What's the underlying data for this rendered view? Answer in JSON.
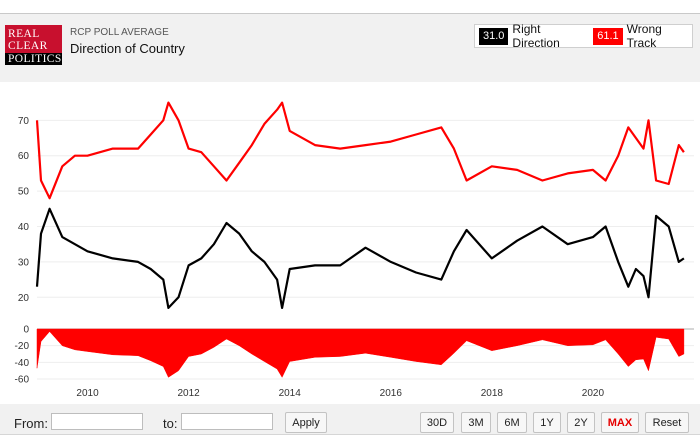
{
  "header": {
    "logo_lines": [
      "REAL",
      "CLEAR",
      "POLITICS"
    ],
    "subtitle": "RCP POLL AVERAGE",
    "title": "Direction of Country"
  },
  "legend": {
    "right_value": "31.0",
    "right_label": "Right Direction",
    "wrong_value": "61.1",
    "wrong_label": "Wrong Track"
  },
  "controls": {
    "from_label": "From:",
    "from_value": "",
    "to_label": "to:",
    "to_value": "",
    "apply_label": "Apply",
    "ranges": [
      "30D",
      "3M",
      "6M",
      "1Y",
      "2Y",
      "MAX"
    ],
    "active_range": "MAX",
    "reset_label": "Reset"
  },
  "colors": {
    "right": "#000000",
    "wrong": "#ff0000",
    "spread": "#ff0000"
  },
  "chart_data": {
    "type": "line",
    "x": [
      2009.0,
      2009.08,
      2009.25,
      2009.5,
      2009.75,
      2010.0,
      2010.5,
      2011.0,
      2011.25,
      2011.5,
      2011.6,
      2011.8,
      2012.0,
      2012.25,
      2012.5,
      2012.75,
      2013.0,
      2013.25,
      2013.5,
      2013.75,
      2013.85,
      2014.0,
      2014.5,
      2015.0,
      2015.5,
      2016.0,
      2016.5,
      2017.0,
      2017.25,
      2017.5,
      2018.0,
      2018.5,
      2019.0,
      2019.5,
      2020.0,
      2020.25,
      2020.5,
      2020.7,
      2020.85,
      2021.0,
      2021.1,
      2021.25,
      2021.5,
      2021.7,
      2021.8
    ],
    "series": [
      {
        "name": "Right Direction",
        "values": [
          23,
          38,
          45,
          37,
          35,
          33,
          31,
          30,
          28,
          25,
          17,
          20,
          29,
          31,
          35,
          41,
          38,
          33,
          30,
          25,
          17,
          28,
          29,
          29,
          34,
          30,
          27,
          25,
          33,
          39,
          31,
          36,
          40,
          35,
          37,
          40,
          30,
          23,
          28,
          26,
          20,
          43,
          40,
          30,
          31
        ]
      },
      {
        "name": "Wrong Track",
        "values": [
          70,
          53,
          48,
          57,
          60,
          60,
          62,
          62,
          66,
          70,
          75,
          70,
          62,
          61,
          57,
          53,
          58,
          63,
          69,
          73,
          75,
          67,
          63,
          62,
          63,
          64,
          66,
          68,
          62,
          53,
          57,
          56,
          53,
          55,
          56,
          53,
          60,
          68,
          65,
          62,
          70,
          53,
          52,
          63,
          61
        ]
      }
    ],
    "spread_ylim": [
      -60,
      0
    ],
    "ylim": [
      15,
      78
    ],
    "yticks": [
      20,
      30,
      40,
      50,
      60,
      70
    ],
    "spread_yticks": [
      0,
      -20,
      -40,
      -60
    ],
    "xticks": [
      2010,
      2012,
      2014,
      2016,
      2018,
      2020
    ],
    "xlim": [
      2009.0,
      2022.0
    ],
    "grid": true
  }
}
